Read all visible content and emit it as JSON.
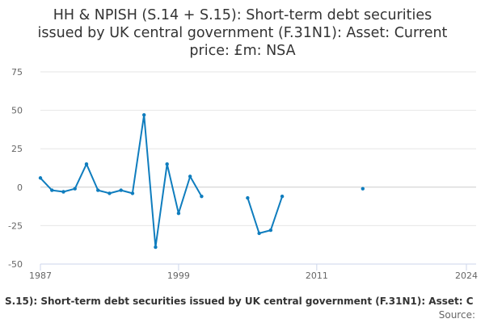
{
  "chart_data": {
    "type": "line",
    "title_lines": [
      "HH & NPISH (S.14 + S.15): Short-term debt securities",
      "issued by UK central government (F.31N1): Asset: Current",
      "price: £m: NSA"
    ],
    "xlabel": "",
    "ylabel": "",
    "xlim": [
      1987,
      2024
    ],
    "ylim": [
      -50,
      75
    ],
    "x_ticks": [
      "1987",
      "1999",
      "2011",
      "2024"
    ],
    "y_ticks": [
      "75",
      "50",
      "25",
      "0",
      "-25",
      "-50"
    ],
    "grid": "horizontal",
    "legend_text": "S.15): Short-term debt securities issued by UK central government (F.31N1): Asset: C",
    "source_text": "Source:",
    "series_color": "#0f7dbe",
    "series": [
      {
        "x": [
          1987,
          1988,
          1989,
          1990,
          1991,
          1992,
          1993,
          1994,
          1995,
          1996,
          1997,
          1998,
          1999,
          2000,
          2001,
          2002,
          2003,
          2004,
          2005,
          2006,
          2007,
          2008,
          2009,
          2010,
          2011,
          2012,
          2013,
          2014,
          2015,
          2016,
          2017,
          2018,
          2019,
          2020,
          2021,
          2022,
          2023
        ],
        "y": [
          6,
          -2,
          -3,
          -1,
          15,
          -2,
          -4,
          -2,
          -4,
          47,
          -39,
          15,
          -17,
          7,
          -6,
          null,
          null,
          null,
          -7,
          -30,
          -28,
          -6,
          null,
          null,
          null,
          null,
          null,
          null,
          -1,
          null,
          null,
          null,
          null,
          null,
          null,
          null,
          null
        ]
      }
    ]
  }
}
